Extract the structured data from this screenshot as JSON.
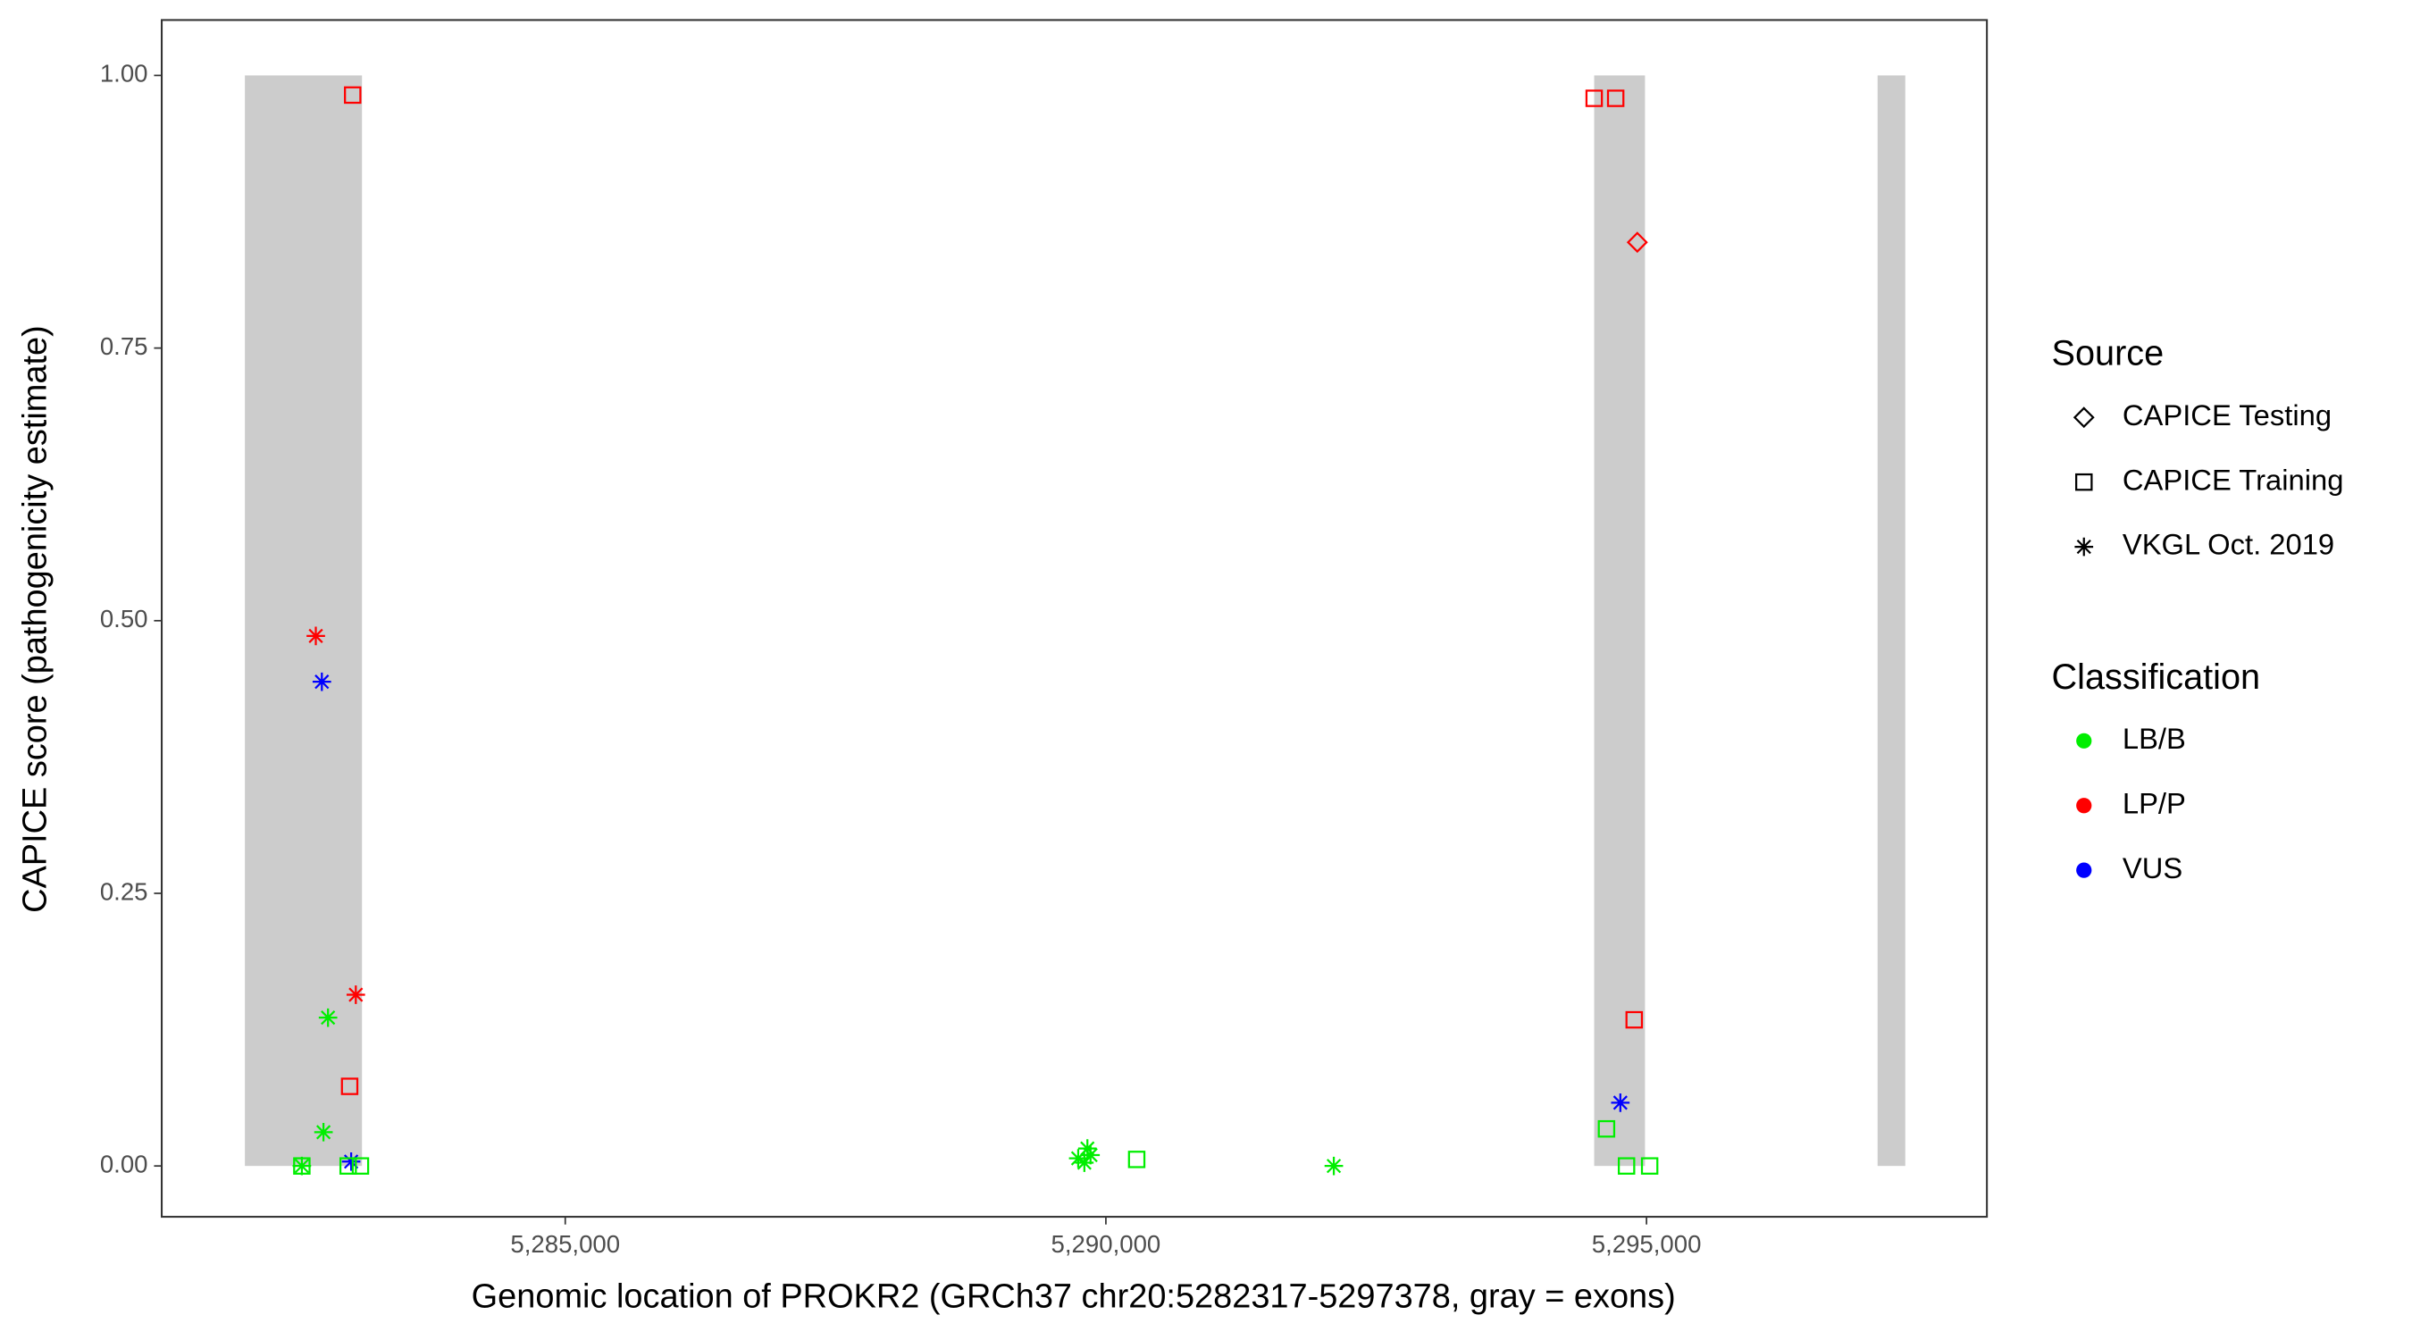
{
  "chart_data": {
    "type": "scatter",
    "x_label": "Genomic location of PROKR2 (GRCh37 chr20:5282317-5297378, gray = exons)",
    "y_label": "CAPICE score (pathogenicity estimate)",
    "xlim": [
      5281268,
      5298148
    ],
    "ylim": [
      -0.0466,
      1.0508
    ],
    "xticks": [
      {
        "value": 5285000,
        "label": "5,285,000"
      },
      {
        "value": 5290000,
        "label": "5,290,000"
      },
      {
        "value": 5295000,
        "label": "5,295,000"
      }
    ],
    "yticks": [
      {
        "value": 0,
        "label": "0.00"
      },
      0.25,
      {
        "value": 0.5,
        "label": "0.50"
      },
      0.75,
      {
        "value": 1,
        "label": "1.00"
      }
    ],
    "exon_color": "#cccccc",
    "exons": [
      [
        5282037,
        5283120
      ],
      [
        5294516,
        5294986
      ],
      [
        5297137,
        5297393
      ]
    ],
    "source_legend": {
      "title": "Source",
      "labels": [
        "CAPICE Testing",
        "CAPICE Training",
        "VKGL Oct. 2019"
      ],
      "shapes": [
        "diamond",
        "square",
        "asterisk"
      ],
      "color": "#000000"
    },
    "class_legend": {
      "title": "Classification",
      "labels": [
        "LB/B",
        "LP/P",
        "VUS"
      ],
      "colors": [
        "#00ee00",
        "#ff0000",
        "#0000ff"
      ]
    },
    "points": {
      "x": [
        5283034,
        5294516,
        5294715,
        5294886,
        5283006,
        5294915,
        5282693,
        5283063,
        5282749,
        5283020,
        5294758,
        5282806,
        5282764,
        5282564,
        5292108,
        5289744,
        5289829,
        5289801,
        5289858,
        5282564,
        5282992,
        5283106,
        5290285,
        5294630,
        5294815,
        5295029
      ],
      "y": [
        0.982,
        0.979,
        0.979,
        0.134,
        0.073,
        0.847,
        0.486,
        0.157,
        0.444,
        0.004,
        0.058,
        0.136,
        0.031,
        0,
        0,
        0.007,
        0.016,
        0.003,
        0.01,
        0,
        0,
        0,
        0.006,
        0.034,
        0,
        0
      ],
      "source": [
        "CAPICE Training",
        "CAPICE Training",
        "CAPICE Training",
        "CAPICE Training",
        "CAPICE Training",
        "CAPICE Testing",
        "VKGL Oct. 2019",
        "VKGL Oct. 2019",
        "VKGL Oct. 2019",
        "VKGL Oct. 2019",
        "VKGL Oct. 2019",
        "VKGL Oct. 2019",
        "VKGL Oct. 2019",
        "VKGL Oct. 2019",
        "VKGL Oct. 2019",
        "VKGL Oct. 2019",
        "VKGL Oct. 2019",
        "VKGL Oct. 2019",
        "VKGL Oct. 2019",
        "CAPICE Training",
        "CAPICE Training",
        "CAPICE Training",
        "CAPICE Training",
        "CAPICE Training",
        "CAPICE Training",
        "CAPICE Training"
      ],
      "classification": [
        "LP/P",
        "LP/P",
        "LP/P",
        "LP/P",
        "LP/P",
        "LP/P",
        "LP/P",
        "LP/P",
        "VUS",
        "VUS",
        "VUS",
        "LB/B",
        "LB/B",
        "LB/B",
        "LB/B",
        "LB/B",
        "LB/B",
        "LB/B",
        "LB/B",
        "LB/B",
        "LB/B",
        "LB/B",
        "LB/B",
        "LB/B",
        "LB/B",
        "LB/B"
      ]
    }
  }
}
